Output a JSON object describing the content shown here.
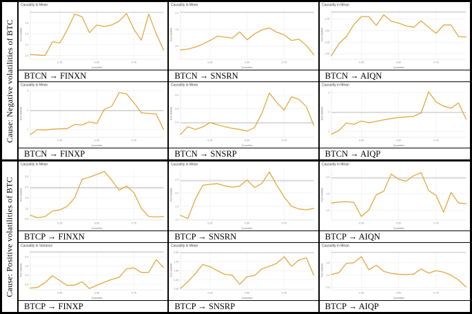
{
  "figure": {
    "left_labels": [
      {
        "text": "Cause: Negative volatilities of BTC"
      },
      {
        "text": "Cause: Positive volatilities of BTC"
      }
    ]
  },
  "colors": {
    "line": "#E3A63E",
    "ref_line": "#B8B8B8",
    "grid": "#ECECEC",
    "axis_text": "#8A8A8A",
    "title_text": "#3A3A3A",
    "border": "#000000"
  },
  "axes": {
    "xlabel": "Quantiles",
    "ylabel": "Test statistic",
    "xticks": [
      0.25,
      0.5,
      0.75
    ],
    "xtick_labels": [
      "0.25",
      "0.50",
      "0.75"
    ]
  },
  "chart_data": [
    {
      "type": "line",
      "title": "Causality in Mean",
      "caption": "BTCN → FINXN",
      "x": [
        0.05,
        0.1,
        0.15,
        0.2,
        0.25,
        0.3,
        0.35,
        0.4,
        0.45,
        0.5,
        0.55,
        0.6,
        0.65,
        0.7,
        0.75,
        0.8,
        0.85,
        0.9,
        0.95
      ],
      "y": [
        1.02,
        1.01,
        1.0,
        1.25,
        1.23,
        1.47,
        1.76,
        1.71,
        1.42,
        1.56,
        1.53,
        1.56,
        1.63,
        1.77,
        1.48,
        1.28,
        1.76,
        1.4,
        1.1
      ],
      "ylim": [
        0.93,
        1.84
      ],
      "ref_line": 1.79,
      "yticks": [
        1.0,
        1.2,
        1.4,
        1.6
      ],
      "ytick_labels": [
        "1.0",
        "1.2",
        "1.4",
        "1.6"
      ]
    },
    {
      "type": "line",
      "title": "Causality in Mean",
      "caption": "BTCN → SNSRN",
      "x": [
        0.05,
        0.1,
        0.15,
        0.2,
        0.25,
        0.3,
        0.35,
        0.4,
        0.45,
        0.5,
        0.55,
        0.6,
        0.65,
        0.7,
        0.75,
        0.8,
        0.85,
        0.9,
        0.95
      ],
      "y": [
        0.88,
        0.91,
        0.97,
        1.06,
        1.17,
        1.3,
        1.27,
        1.24,
        1.43,
        1.19,
        1.37,
        1.49,
        1.55,
        1.42,
        1.34,
        1.17,
        1.21,
        1.02,
        0.74
      ],
      "ylim": [
        0.6,
        2.1
      ],
      "ref_line": 2.02,
      "yticks": [
        1.0,
        1.5,
        2.0
      ],
      "ytick_labels": [
        "1.0",
        "1.5",
        "2.0"
      ]
    },
    {
      "type": "line",
      "title": "Causality in Mean",
      "caption": "BTCN → AIQN",
      "x": [
        0.05,
        0.1,
        0.15,
        0.2,
        0.25,
        0.3,
        0.35,
        0.4,
        0.45,
        0.5,
        0.55,
        0.6,
        0.65,
        0.7,
        0.75,
        0.8,
        0.85,
        0.9,
        0.95
      ],
      "y": [
        0.96,
        1.22,
        1.37,
        1.63,
        1.8,
        1.8,
        1.61,
        1.84,
        1.7,
        1.66,
        1.6,
        1.57,
        1.71,
        1.57,
        1.44,
        1.62,
        1.62,
        1.37,
        1.36
      ],
      "ylim": [
        0.88,
        1.95
      ],
      "ref_line": 1.9,
      "yticks": [
        1.0,
        1.25,
        1.5,
        1.75
      ],
      "ytick_labels": [
        "1.00",
        "1.25",
        "1.50",
        "1.75"
      ]
    },
    {
      "type": "line",
      "title": "Causality in Mean",
      "caption": "BTCN → FINXP",
      "x": [
        0.05,
        0.1,
        0.15,
        0.2,
        0.25,
        0.3,
        0.35,
        0.4,
        0.45,
        0.5,
        0.55,
        0.6,
        0.65,
        0.7,
        0.75,
        0.8,
        0.85,
        0.9,
        0.95
      ],
      "y": [
        0.74,
        1.0,
        0.98,
        1.02,
        1.04,
        1.05,
        1.26,
        1.24,
        1.4,
        1.31,
        2.04,
        2.2,
        2.9,
        2.84,
        2.38,
        1.86,
        1.83,
        1.8,
        1.01
      ],
      "ylim": [
        0.6,
        3.05
      ],
      "ref_line": 1.97,
      "yticks": [
        1,
        2,
        3
      ],
      "ytick_labels": [
        "1",
        "2",
        "3"
      ]
    },
    {
      "type": "line",
      "title": "Causality in Mean",
      "caption": "BTCN → SNSRP",
      "x": [
        0.05,
        0.1,
        0.15,
        0.2,
        0.25,
        0.3,
        0.35,
        0.4,
        0.45,
        0.5,
        0.55,
        0.6,
        0.65,
        0.7,
        0.75,
        0.8,
        0.85,
        0.9,
        0.95
      ],
      "y": [
        1.56,
        1.84,
        1.74,
        1.83,
        1.99,
        1.91,
        1.84,
        1.78,
        1.74,
        1.68,
        1.81,
        2.34,
        3.08,
        2.73,
        2.45,
        2.94,
        2.84,
        2.58,
        1.89
      ],
      "ylim": [
        1.45,
        3.2
      ],
      "ref_line": 1.98,
      "yticks": [
        2.0,
        2.5,
        3.0
      ],
      "ytick_labels": [
        "2.0",
        "2.5",
        "3.0"
      ]
    },
    {
      "type": "line",
      "title": "Causality in Mean",
      "caption": "BTCN → AIQP",
      "x": [
        0.05,
        0.1,
        0.15,
        0.2,
        0.25,
        0.3,
        0.35,
        0.4,
        0.45,
        0.5,
        0.55,
        0.6,
        0.65,
        0.7,
        0.75,
        0.8,
        0.85,
        0.9,
        0.95
      ],
      "y": [
        0.86,
        1.05,
        1.44,
        1.37,
        1.54,
        1.45,
        1.52,
        1.6,
        1.67,
        1.72,
        1.75,
        1.78,
        1.96,
        3.04,
        2.52,
        2.3,
        2.2,
        2.47,
        1.64
      ],
      "ylim": [
        0.7,
        3.15
      ],
      "ref_line": 1.98,
      "yticks": [
        1,
        2,
        3
      ],
      "ytick_labels": [
        "1",
        "2",
        "3"
      ]
    },
    {
      "type": "line",
      "title": "Causality in Mean",
      "caption": "BTCP → FINXN",
      "x": [
        0.05,
        0.1,
        0.15,
        0.2,
        0.25,
        0.3,
        0.35,
        0.4,
        0.45,
        0.5,
        0.55,
        0.6,
        0.65,
        0.7,
        0.75,
        0.8,
        0.85,
        0.9,
        0.95
      ],
      "y": [
        0.68,
        0.56,
        0.62,
        0.88,
        0.93,
        1.1,
        1.5,
        2.37,
        2.47,
        2.6,
        2.74,
        2.33,
        1.86,
        2.05,
        1.74,
        1.0,
        0.62,
        0.6,
        0.62
      ],
      "ylim": [
        0.45,
        2.85
      ],
      "ref_line": 1.97,
      "yticks": [
        0.5,
        1.0,
        1.5,
        2.0,
        2.5
      ],
      "ytick_labels": [
        "0.5",
        "1.0",
        "1.5",
        "2.0",
        "2.5"
      ]
    },
    {
      "type": "line",
      "title": "Causality in Mean",
      "caption": "BTCP → SNSRN",
      "x": [
        0.05,
        0.1,
        0.15,
        0.2,
        0.25,
        0.3,
        0.35,
        0.4,
        0.45,
        0.5,
        0.55,
        0.6,
        0.65,
        0.7,
        0.75,
        0.8,
        0.85,
        0.9,
        0.95
      ],
      "y": [
        1.16,
        1.04,
        1.76,
        2.29,
        2.33,
        2.35,
        2.27,
        2.22,
        2.26,
        2.49,
        2.21,
        2.36,
        2.79,
        2.3,
        1.85,
        1.5,
        1.4,
        1.37,
        1.42
      ],
      "ylim": [
        0.98,
        2.9
      ],
      "ref_line": 2.46,
      "yticks": [
        1.0,
        1.5,
        2.0,
        2.5
      ],
      "ytick_labels": [
        "1.0",
        "1.5",
        "2.0",
        "2.5"
      ]
    },
    {
      "type": "line",
      "title": "Causality in Mean",
      "caption": "BTCP → AIQN",
      "x": [
        0.05,
        0.1,
        0.15,
        0.2,
        0.25,
        0.3,
        0.35,
        0.4,
        0.45,
        0.5,
        0.55,
        0.6,
        0.65,
        0.7,
        0.75,
        0.8,
        0.85,
        0.9,
        0.95
      ],
      "y": [
        1.22,
        1.25,
        1.26,
        1.24,
        0.81,
        1.01,
        1.47,
        1.58,
        2.1,
        1.94,
        1.88,
        2.05,
        2.14,
        1.6,
        1.45,
        0.94,
        1.54,
        1.22,
        1.2
      ],
      "ylim": [
        0.7,
        2.25
      ],
      "ref_line": 1.98,
      "yticks": [
        1.0,
        1.5,
        2.0
      ],
      "ytick_labels": [
        "1.0",
        "1.5",
        "2.0"
      ]
    },
    {
      "type": "line",
      "title": "Causality in Variance",
      "caption": "BTCP → FINXP",
      "x": [
        0.05,
        0.1,
        0.15,
        0.2,
        0.25,
        0.3,
        0.35,
        0.4,
        0.45,
        0.5,
        0.55,
        0.6,
        0.65,
        0.7,
        0.75,
        0.8,
        0.85,
        0.9,
        0.95
      ],
      "y": [
        0.3,
        0.33,
        0.6,
        0.97,
        0.7,
        0.44,
        0.46,
        0.64,
        0.27,
        0.45,
        0.62,
        0.77,
        0.88,
        1.35,
        1.4,
        1.15,
        1.16,
        1.85,
        1.42
      ],
      "ylim": [
        0.2,
        2.35
      ],
      "ref_line": 2.27,
      "yticks": [
        0.5,
        1.0,
        1.5,
        2.0
      ],
      "ytick_labels": [
        "0.5",
        "1.0",
        "1.5",
        "2.0"
      ]
    },
    {
      "type": "line",
      "title": "Causality in Mean",
      "caption": "BTCP → SNSRP",
      "x": [
        0.05,
        0.1,
        0.15,
        0.2,
        0.25,
        0.3,
        0.35,
        0.4,
        0.45,
        0.5,
        0.55,
        0.6,
        0.65,
        0.7,
        0.75,
        0.8,
        0.85,
        0.9,
        0.95
      ],
      "y": [
        1.02,
        1.2,
        1.42,
        1.67,
        1.61,
        1.5,
        1.4,
        1.38,
        1.13,
        1.34,
        1.37,
        1.55,
        1.62,
        1.7,
        1.88,
        1.62,
        1.79,
        1.85,
        1.38
      ],
      "ylim": [
        0.98,
        2.05
      ],
      "ref_line": 1.99,
      "yticks": [
        1.0,
        1.25,
        1.5,
        1.75,
        2.0
      ],
      "ytick_labels": [
        "1.00",
        "1.25",
        "1.50",
        "1.75",
        "2.00"
      ]
    },
    {
      "type": "line",
      "title": "Causality in Mean",
      "caption": "BTCP → AIQP",
      "x": [
        0.05,
        0.1,
        0.15,
        0.2,
        0.25,
        0.3,
        0.35,
        0.4,
        0.45,
        0.5,
        0.55,
        0.6,
        0.65,
        0.7,
        0.75,
        0.8,
        0.85,
        0.9,
        0.95
      ],
      "y": [
        1.02,
        1.1,
        1.48,
        1.5,
        1.75,
        1.22,
        1.4,
        1.15,
        1.07,
        1.03,
        1.02,
        1.04,
        1.25,
        1.08,
        1.18,
        1.12,
        1.0,
        0.8,
        0.52
      ],
      "ylim": [
        0.4,
        2.0
      ],
      "ref_line": 1.92,
      "yticks": [
        0.5,
        1.0,
        1.5
      ],
      "ytick_labels": [
        "0.5",
        "1.0",
        "1.5"
      ]
    }
  ]
}
